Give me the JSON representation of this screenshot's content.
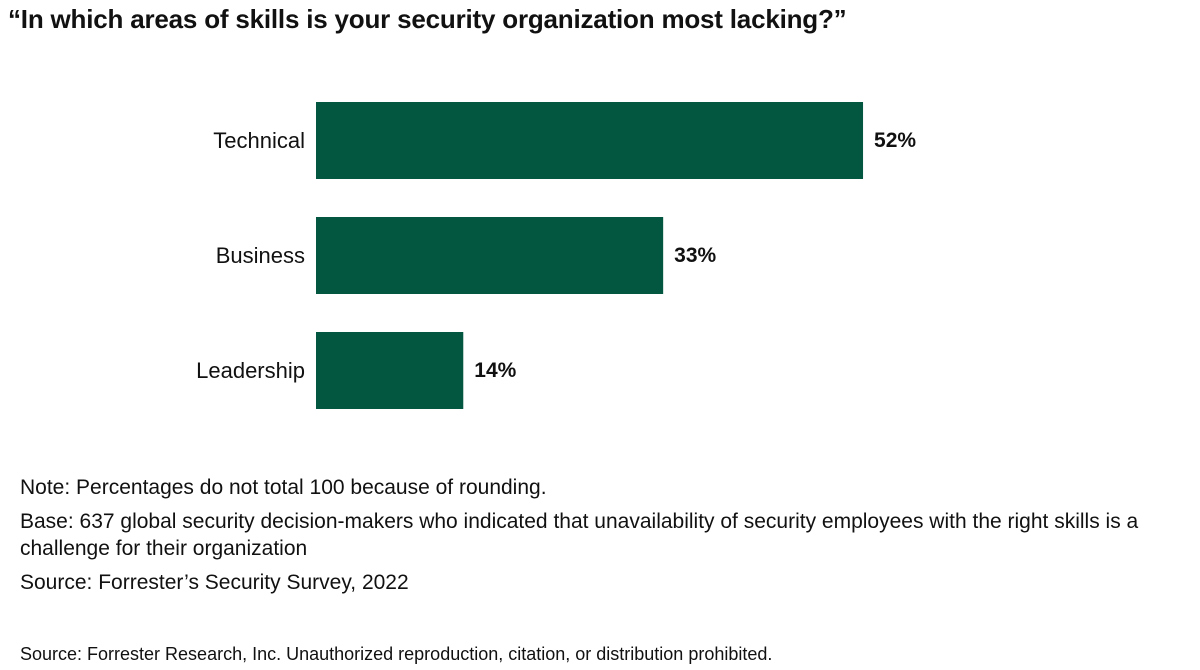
{
  "chart_data": {
    "type": "bar",
    "orientation": "horizontal",
    "title": "“In which areas of skills is your security organization most lacking?”",
    "categories": [
      "Technical",
      "Business",
      "Leadership"
    ],
    "values": [
      52,
      33,
      14
    ],
    "value_labels": [
      "52%",
      "33%",
      "14%"
    ],
    "unit": "%",
    "xlim": [
      0,
      100
    ],
    "grid": false,
    "legend": "none",
    "bar_color": "#035741"
  },
  "notes": {
    "note": "Note: Percentages do not total 100 because of rounding.",
    "base": "Base: 637 global security decision-makers who indicated that unavailability of security employees with the right skills is a challenge for their organization",
    "source": "Source: Forrester’s Security Survey, 2022"
  },
  "footer": {
    "copyright": "Source: Forrester Research, Inc. Unauthorized reproduction, citation, or distribution prohibited."
  }
}
